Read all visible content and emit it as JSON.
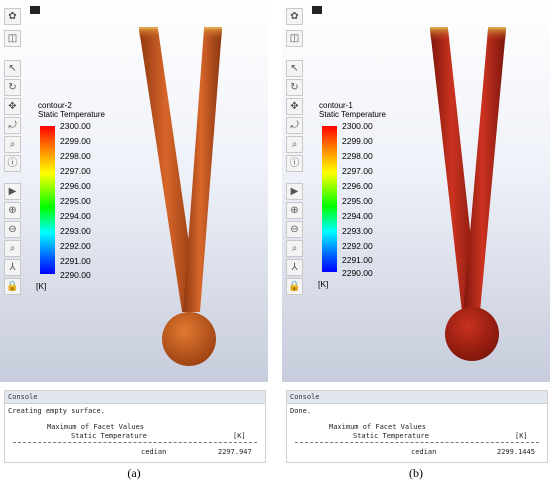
{
  "panels": [
    {
      "caption": "(a)",
      "legend": {
        "name": "contour-2",
        "quantity": "Static Temperature",
        "ticks": [
          "2300.00",
          "2299.00",
          "2298.00",
          "2297.00",
          "2296.00",
          "2295.00",
          "2294.00",
          "2293.00",
          "2292.00",
          "2291.00",
          "2290.00"
        ],
        "unit": "[K]"
      },
      "model_color": "#c85a1e",
      "console": {
        "title": "Console",
        "message": "Creating empty surface.",
        "heading": "Maximum of Facet Values",
        "quantity": "Static Temperature",
        "unit": "[K]",
        "surface": "cedian",
        "value": "2297.947"
      }
    },
    {
      "caption": "(b)",
      "legend": {
        "name": "contour-1",
        "quantity": "Static Temperature",
        "ticks": [
          "2300.00",
          "2299.00",
          "2298.00",
          "2297.00",
          "2296.00",
          "2295.00",
          "2294.00",
          "2293.00",
          "2292.00",
          "2291.00",
          "2290.00"
        ],
        "unit": "[K]"
      },
      "model_color": "#b82818",
      "console": {
        "title": "Console",
        "message": "Done.",
        "heading": "Maximum of Facet Values",
        "quantity": "Static Temperature",
        "unit": "[K]",
        "surface": "cedian",
        "value": "2299.1445"
      }
    }
  ],
  "toolbar_icons": [
    "display-options-icon",
    "view-icon",
    "select-icon",
    "rotate-icon",
    "pan-icon",
    "zoom-icon",
    "zoom-fit-icon",
    "info-icon",
    "probe-icon",
    "zoom-in-icon",
    "zoom-out-icon",
    "zoom-box-icon",
    "axes-icon",
    "lock-icon"
  ]
}
